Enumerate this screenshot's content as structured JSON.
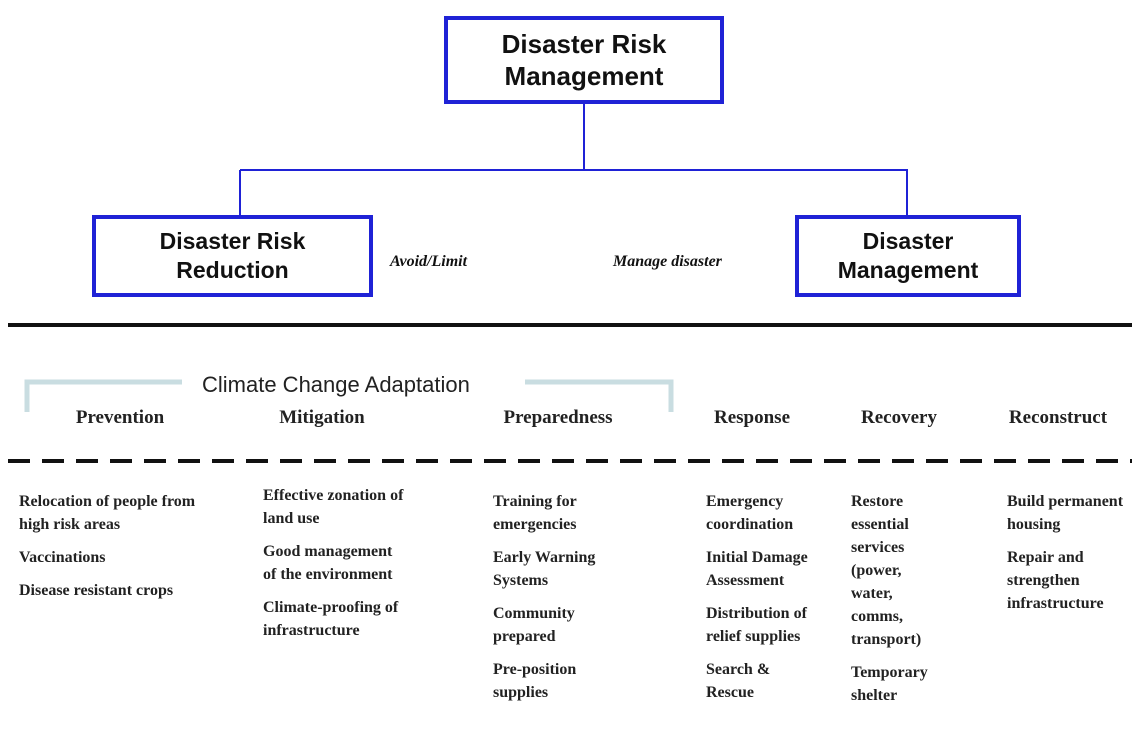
{
  "root": {
    "label": "Disaster Risk Management"
  },
  "branches": [
    {
      "label": "Disaster Risk Reduction",
      "note": "Avoid/Limit"
    },
    {
      "label": "Disaster Management",
      "note": "Manage disaster"
    }
  ],
  "band": {
    "label": "Climate Change Adaptation"
  },
  "phases": [
    {
      "name": "Prevention",
      "items": [
        "Relocation of people from high risk areas",
        "Vaccinations",
        "Disease resistant crops"
      ]
    },
    {
      "name": "Mitigation",
      "items": [
        "Effective zonation of land use",
        "Good management of the environment",
        "Climate-proofing of infrastructure"
      ]
    },
    {
      "name": "Preparedness",
      "items": [
        "Training for emergencies",
        "Early Warning Systems",
        "Community prepared",
        "Pre-position supplies"
      ]
    },
    {
      "name": "Response",
      "items": [
        "Emergency coordination",
        "Initial Damage Assessment",
        "Distribution of relief supplies",
        "Search & Rescue"
      ]
    },
    {
      "name": "Recovery",
      "items": [
        "Restore essential services (power, water, comms, transport)",
        "Temporary shelter"
      ]
    },
    {
      "name": "Reconstruct",
      "items": [
        "Build permanent housing",
        "Repair and strengthen infrastructure"
      ]
    }
  ]
}
